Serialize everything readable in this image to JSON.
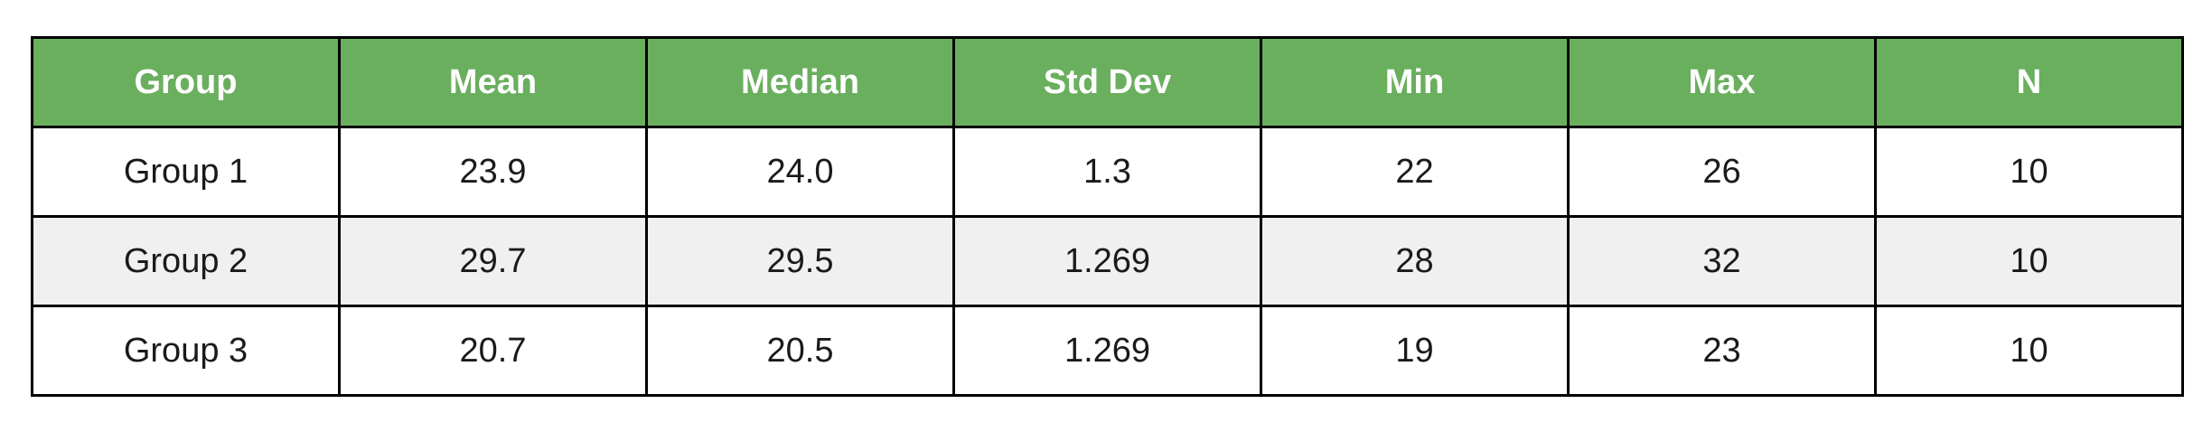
{
  "chart_data": {
    "type": "table",
    "columns": [
      "Group",
      "Mean",
      "Median",
      "Std Dev",
      "Min",
      "Max",
      "N"
    ],
    "rows": [
      [
        "Group 1",
        "23.9",
        "24.0",
        "1.3",
        "22",
        "26",
        "10"
      ],
      [
        "Group 2",
        "29.7",
        "29.5",
        "1.269",
        "28",
        "32",
        "10"
      ],
      [
        "Group 3",
        "20.7",
        "20.5",
        "1.269",
        "19",
        "23",
        "10"
      ]
    ]
  },
  "colors": {
    "header_background": "#6aaf5e",
    "header_text": "#ffffff",
    "alternate_row_background": "#f0f0f0",
    "border": "#000000"
  }
}
